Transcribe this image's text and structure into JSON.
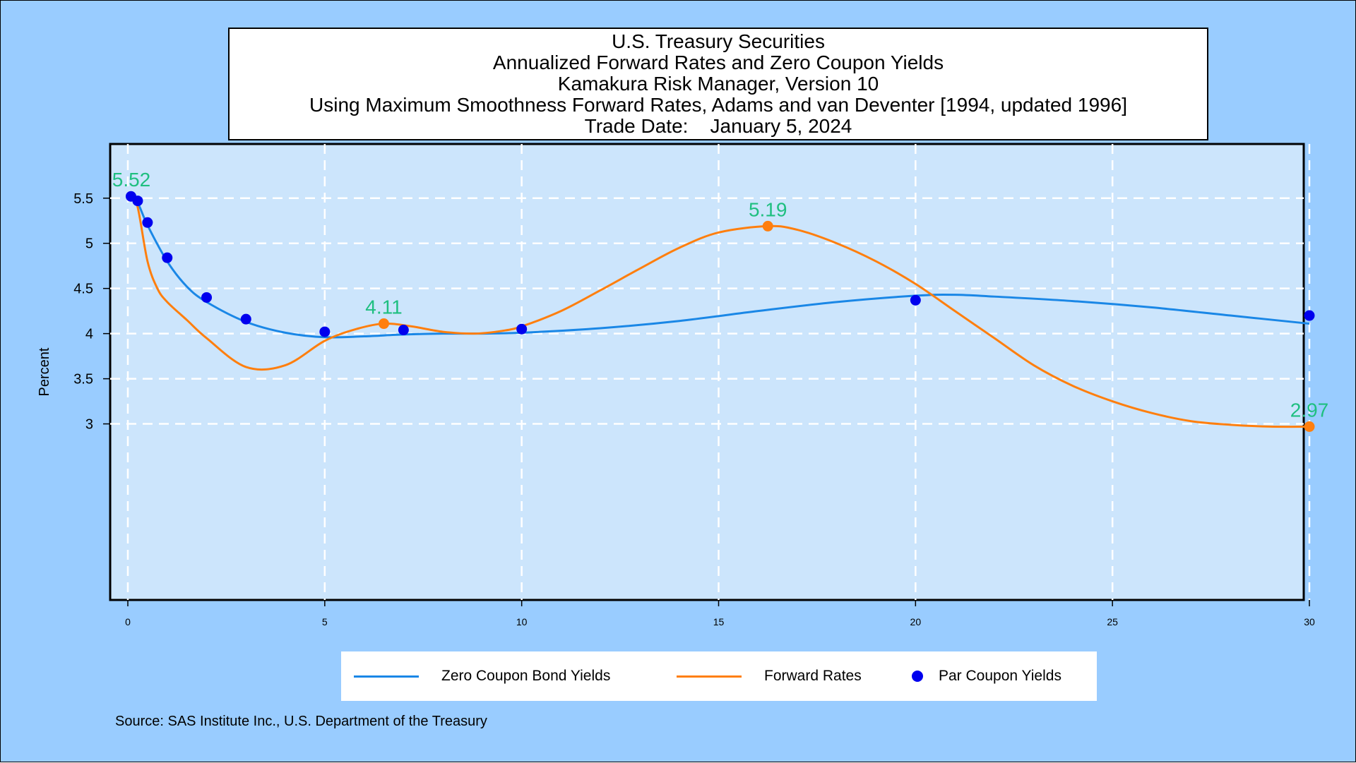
{
  "titles": {
    "line1": "U.S. Treasury Securities",
    "line2": "Annualized Forward Rates and Zero Coupon Yields",
    "line3": "Kamakura Risk Manager, Version 10",
    "line4": "Using Maximum Smoothness Forward Rates, Adams and van Deventer [1994, updated 1996]",
    "line5": "Trade Date:    January 5, 2024"
  },
  "source": "Source: SAS Institute Inc., U.S. Department of the Treasury",
  "colors": {
    "zero": "#1a87e6",
    "forward": "#ff7f0e",
    "par": "#0000ee",
    "annotation": "#1fbf80",
    "plot_bg": "#cce5fc",
    "page_bg": "#99ccff",
    "grid": "#ffffff"
  },
  "legend": {
    "zero": "Zero Coupon Bond Yields",
    "forward": "Forward Rates",
    "par": "Par Coupon Yields"
  },
  "chart_data": {
    "type": "line",
    "ylabel": "Percent",
    "xlabel": "",
    "xlim": [
      0,
      30
    ],
    "ylim": [
      1.05,
      6.1
    ],
    "x_ticks": [
      0,
      5,
      10,
      15,
      20,
      25,
      30
    ],
    "y_ticks": [
      3,
      3.5,
      4,
      4.5,
      5,
      5.5
    ],
    "y_tick_labels": [
      "3",
      "3.5",
      "4",
      "4.5",
      "5",
      "5.5"
    ],
    "grid": true,
    "legend_position": "bottom",
    "series": [
      {
        "name": "Zero Coupon Bond Yields",
        "style": "line",
        "x": [
          0.08,
          0.25,
          0.5,
          1,
          1.5,
          2,
          3,
          4,
          5,
          6,
          7,
          8,
          9,
          10,
          12,
          14,
          16,
          18,
          20,
          21,
          22,
          24,
          26,
          28,
          30
        ],
        "y": [
          5.52,
          5.45,
          5.2,
          4.8,
          4.52,
          4.35,
          4.13,
          4.01,
          3.96,
          3.97,
          3.99,
          4.0,
          4.0,
          4.01,
          4.06,
          4.14,
          4.25,
          4.35,
          4.42,
          4.43,
          4.41,
          4.36,
          4.29,
          4.2,
          4.11
        ]
      },
      {
        "name": "Forward Rates",
        "style": "line",
        "x": [
          0.08,
          0.25,
          0.5,
          0.75,
          1,
          1.5,
          2,
          3,
          4,
          5,
          5.8,
          6.5,
          7.2,
          8,
          8.8,
          9.5,
          10,
          11,
          12,
          13,
          14,
          15,
          16.25,
          17,
          18,
          19,
          20,
          21,
          22,
          23,
          24,
          25,
          26,
          27,
          28,
          29,
          30
        ],
        "y": [
          5.52,
          5.4,
          4.8,
          4.5,
          4.35,
          4.15,
          3.95,
          3.63,
          3.65,
          3.92,
          4.05,
          4.11,
          4.08,
          4.02,
          4.0,
          4.03,
          4.08,
          4.25,
          4.48,
          4.72,
          4.95,
          5.12,
          5.19,
          5.15,
          5.0,
          4.8,
          4.55,
          4.25,
          3.95,
          3.65,
          3.42,
          3.25,
          3.12,
          3.03,
          2.99,
          2.97,
          2.97
        ]
      },
      {
        "name": "Par Coupon Yields",
        "style": "points",
        "x": [
          0.08,
          0.25,
          0.5,
          1,
          2,
          3,
          5,
          7,
          10,
          20,
          30
        ],
        "y": [
          5.52,
          5.47,
          5.23,
          4.84,
          4.4,
          4.16,
          4.02,
          4.04,
          4.05,
          4.37,
          4.2
        ]
      }
    ],
    "annotations": [
      {
        "x": 0.08,
        "y": 5.52,
        "label": "5.52"
      },
      {
        "x": 6.5,
        "y": 4.11,
        "label": "4.11"
      },
      {
        "x": 16.25,
        "y": 5.19,
        "label": "5.19"
      },
      {
        "x": 30,
        "y": 2.97,
        "label": "2.97"
      }
    ],
    "forward_markers": [
      {
        "x": 6.5,
        "y": 4.11
      },
      {
        "x": 16.25,
        "y": 5.19
      },
      {
        "x": 30,
        "y": 2.97
      }
    ]
  }
}
